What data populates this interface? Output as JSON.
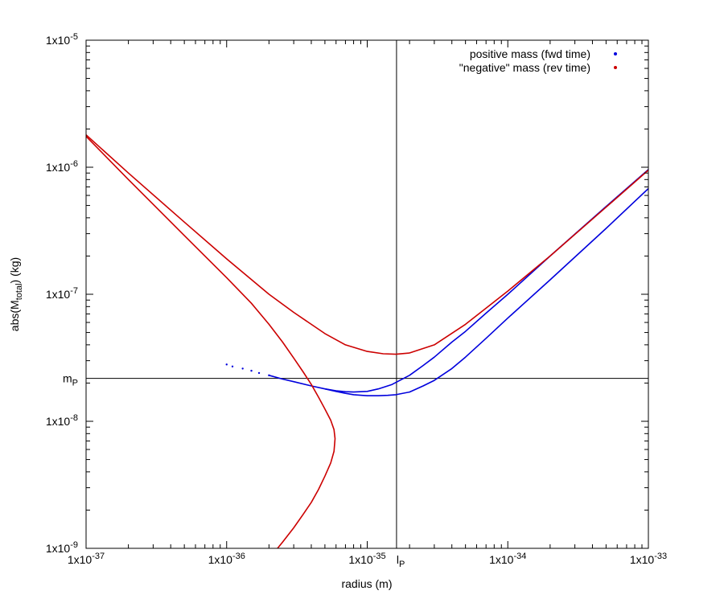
{
  "chart_data": {
    "type": "line",
    "xlabel": "radius (m)",
    "ylabel_parts": {
      "prefix": "abs(M",
      "subscript": "total",
      "suffix": ") (kg)"
    },
    "x_scale": "log",
    "y_scale": "log",
    "xlim": [
      1e-37,
      1e-33
    ],
    "ylim": [
      1e-09,
      1e-05
    ],
    "grid": false,
    "legend_position": "top-right",
    "x_ticks": [
      {
        "value": 1e-37,
        "base": "1x10",
        "exp": "-37"
      },
      {
        "value": 1e-36,
        "base": "1x10",
        "exp": "-36"
      },
      {
        "value": 1e-35,
        "base": "1x10",
        "exp": "-35"
      },
      {
        "value": 1e-34,
        "base": "1x10",
        "exp": "-34"
      },
      {
        "value": 1e-33,
        "base": "1x10",
        "exp": "-33"
      }
    ],
    "y_ticks": [
      {
        "value": 1e-09,
        "base": "1x10",
        "exp": "-9"
      },
      {
        "value": 1e-08,
        "base": "1x10",
        "exp": "-8"
      },
      {
        "value": 1e-07,
        "base": "1x10",
        "exp": "-7"
      },
      {
        "value": 1e-06,
        "base": "1x10",
        "exp": "-6"
      },
      {
        "value": 1e-05,
        "base": "1x10",
        "exp": "-5"
      }
    ],
    "reference_lines": [
      {
        "orientation": "vertical",
        "value": 1.616e-35,
        "label_base": "l",
        "label_sub": "P"
      },
      {
        "orientation": "horizontal",
        "value": 2.176e-08,
        "label_base": "m",
        "label_sub": "P"
      }
    ],
    "series": [
      {
        "name": "positive mass (fwd time)",
        "color": "#0000dd",
        "curves": [
          {
            "style": "dots",
            "x": [
              1e-36,
              1.1e-36,
              1.3e-36,
              1.5e-36,
              1.7e-36,
              2e-36
            ],
            "y": [
              2.8e-08,
              2.7e-08,
              2.6e-08,
              2.5e-08,
              2.4e-08,
              2.3e-08
            ]
          },
          {
            "style": "line",
            "x": [
              2e-36,
              2.5e-36,
              3e-36,
              4e-36,
              5e-36,
              6e-36,
              7e-36,
              8e-36,
              1e-35,
              1.2e-35,
              1.5e-35,
              2e-35,
              2.5e-35,
              3e-35,
              4e-35,
              5e-35,
              7e-35,
              1e-34,
              2e-34,
              5e-34,
              1e-33
            ],
            "y": [
              2.3e-08,
              2.15e-08,
              2.05e-08,
              1.9e-08,
              1.8e-08,
              1.74e-08,
              1.71e-08,
              1.7e-08,
              1.72e-08,
              1.8e-08,
              1.95e-08,
              2.3e-08,
              2.75e-08,
              3.2e-08,
              4.2e-08,
              5.1e-08,
              7.1e-08,
              1e-07,
              2e-07,
              4.9e-07,
              9.6e-07
            ]
          },
          {
            "style": "line",
            "x": [
              5e-36,
              6e-36,
              7e-36,
              8e-36,
              1e-35,
              1.2e-35,
              1.4e-35,
              1.6e-35,
              2e-35,
              2.5e-35,
              3e-35,
              4e-35,
              5e-35,
              7e-35,
              1e-34,
              2e-34,
              5e-34,
              1e-33
            ],
            "y": [
              1.8e-08,
              1.72e-08,
              1.66e-08,
              1.62e-08,
              1.59e-08,
              1.59e-08,
              1.6e-08,
              1.62e-08,
              1.7e-08,
              1.9e-08,
              2.1e-08,
              2.6e-08,
              3.2e-08,
              4.5e-08,
              6.5e-08,
              1.3e-07,
              3.3e-07,
              6.8e-07
            ]
          }
        ]
      },
      {
        "name": "\"negative\" mass (rev time)",
        "color": "#cc0000",
        "curves": [
          {
            "style": "line",
            "x": [
              1e-37,
              2e-37,
              5e-37,
              1e-36,
              2e-36,
              3e-36,
              5e-36,
              7e-36,
              1e-35,
              1.3e-35,
              1.6e-35,
              2e-35,
              3e-35,
              5e-35,
              1e-34,
              2e-34,
              5e-34,
              1e-33
            ],
            "y": [
              1.8e-06,
              9e-07,
              3.7e-07,
              1.9e-07,
              1e-07,
              7.2e-08,
              4.9e-08,
              4e-08,
              3.55e-08,
              3.4e-08,
              3.37e-08,
              3.45e-08,
              4e-08,
              5.8e-08,
              1.06e-07,
              2e-07,
              4.85e-07,
              9.5e-07
            ]
          },
          {
            "style": "line",
            "x": [
              1e-37,
              2e-37,
              5e-37,
              1e-36,
              1.5e-36,
              2e-36,
              2.5e-36,
              3e-36,
              3.5e-36,
              4e-36,
              4.5e-36,
              5e-36,
              5.5e-36,
              5.8e-36,
              5.9e-36,
              5.8e-36,
              5.5e-36,
              5e-36,
              4.5e-36,
              4e-36,
              3.5e-36,
              3e-36,
              2.5e-36,
              2.3e-36
            ],
            "y": [
              1.75e-06,
              8e-07,
              2.9e-07,
              1.35e-07,
              8.5e-08,
              5.8e-08,
              4.2e-08,
              3.15e-08,
              2.45e-08,
              1.95e-08,
              1.55e-08,
              1.25e-08,
              1.02e-08,
              8.6e-09,
              7.3e-09,
              5.8e-09,
              4.7e-09,
              3.7e-09,
              2.9e-09,
              2.3e-09,
              1.85e-09,
              1.45e-09,
              1.12e-09,
              1e-09
            ]
          }
        ]
      }
    ]
  }
}
